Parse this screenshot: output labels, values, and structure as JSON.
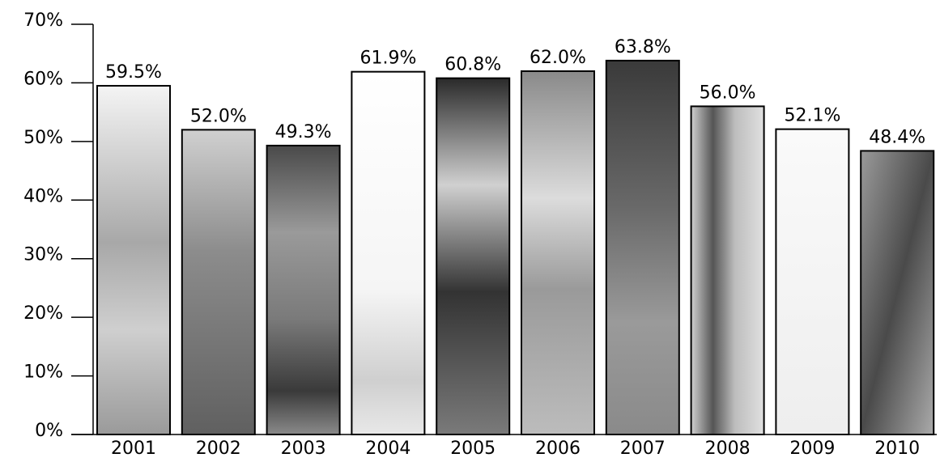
{
  "chart_data": {
    "type": "bar",
    "categories": [
      "2001",
      "2002",
      "2003",
      "2004",
      "2005",
      "2006",
      "2007",
      "2008",
      "2009",
      "2010"
    ],
    "values": [
      59.5,
      52.0,
      49.3,
      61.9,
      60.8,
      62.0,
      63.8,
      56.0,
      52.1,
      48.4
    ],
    "value_labels": [
      "59.5%",
      "52.0%",
      "49.3%",
      "61.9%",
      "60.8%",
      "62.0%",
      "63.8%",
      "56.0%",
      "52.1%",
      "48.4%"
    ],
    "ylim": [
      0,
      70
    ],
    "yticks": [
      {
        "value": 0,
        "label": "0%"
      },
      {
        "value": 10,
        "label": "10%"
      },
      {
        "value": 20,
        "label": "20%"
      },
      {
        "value": 30,
        "label": "30%"
      },
      {
        "value": 40,
        "label": "40%"
      },
      {
        "value": 50,
        "label": "50%"
      },
      {
        "value": 60,
        "label": "60%"
      },
      {
        "value": 70,
        "label": "70%"
      }
    ]
  }
}
